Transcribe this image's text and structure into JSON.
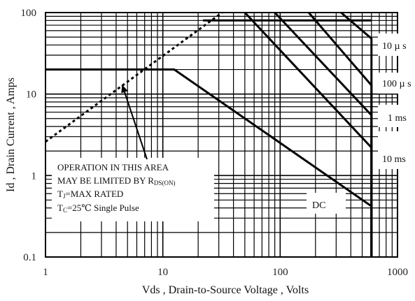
{
  "chart_data": {
    "type": "line",
    "x_scale": "log",
    "y_scale": "log",
    "xlim": [
      1,
      1000
    ],
    "ylim": [
      0.1,
      100
    ],
    "xlabel": "Vds , Drain-to-Source Voltage , Volts",
    "ylabel": "Id , Drain Current , Amps",
    "x_ticks": [
      "1",
      "10",
      "100",
      "1000"
    ],
    "y_ticks": [
      "0.1",
      "1",
      "10",
      "100"
    ],
    "grid": true,
    "series": [
      {
        "name": "DC",
        "style": "solid",
        "x": [
          1,
          12.5,
          600,
          600
        ],
        "y": [
          20,
          20,
          0.42,
          0.1
        ]
      },
      {
        "name": "10 ms",
        "style": "solid",
        "x": [
          50,
          600,
          600
        ],
        "y": [
          100,
          2.2,
          0.1
        ]
      },
      {
        "name": "1 ms",
        "style": "solid",
        "x": [
          90,
          600,
          600
        ],
        "y": [
          100,
          5.5,
          0.1
        ]
      },
      {
        "name": "100 µs",
        "style": "solid",
        "x": [
          175,
          600,
          600
        ],
        "y": [
          100,
          12.8,
          0.1
        ]
      },
      {
        "name": "10 µs",
        "style": "solid",
        "x": [
          330,
          600,
          600
        ],
        "y": [
          100,
          48,
          0.1
        ]
      },
      {
        "name": "",
        "style": "solid",
        "x": [
          22,
          600
        ],
        "y": [
          80,
          80
        ]
      },
      {
        "name": "",
        "style": "dashed",
        "x": [
          1,
          32
        ],
        "y": [
          2.6,
          100
        ]
      }
    ],
    "curve_labels": [
      "10 µ s",
      "100 µ s",
      "1 ms",
      "10 ms",
      "DC"
    ],
    "annotation": {
      "line1": "OPERATION IN THIS AREA",
      "line2": "MAY BE LIMITED BY R",
      "line2_sub": "DS(ON)",
      "line3_pre": "T",
      "line3_sub": "J",
      "line3_post": "=MAX RATED",
      "line4_pre": "T",
      "line4_sub": "C",
      "line4_post": "=25℃  Single Pulse",
      "arrow_to": [
        4.5,
        13
      ]
    }
  }
}
